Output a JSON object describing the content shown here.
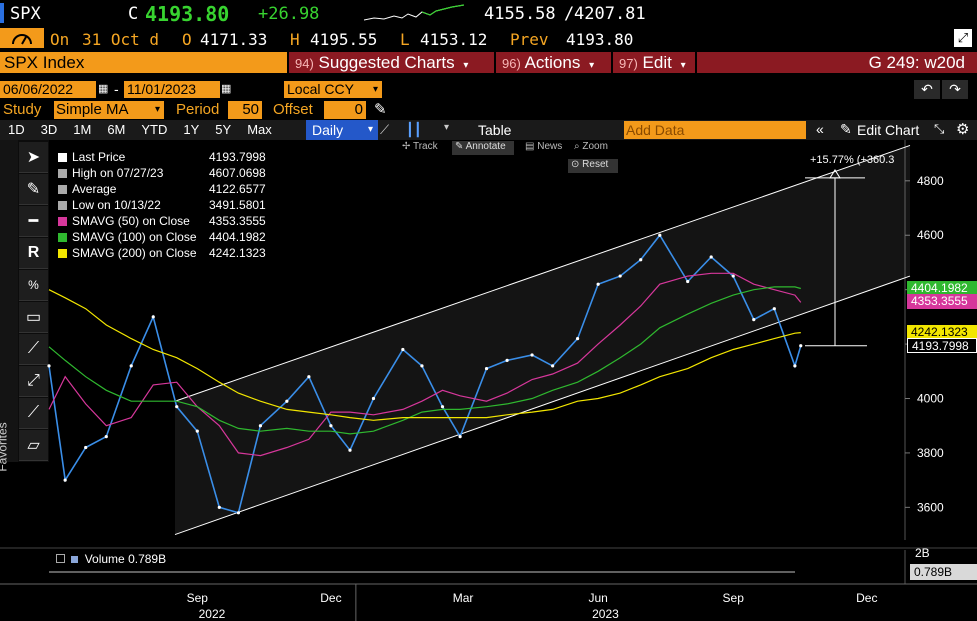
{
  "ticker": {
    "symbol": "SPX",
    "close_prefix": "C",
    "close": "4193.80",
    "change": "+26.98",
    "range_low": "4155.58",
    "range_sep": "/",
    "range_high": "4207.81"
  },
  "ohlc": {
    "on_label": "On",
    "date": "31 Oct d",
    "open_label": "O",
    "open": "4171.33",
    "high_label": "H",
    "high": "4195.55",
    "low_label": "L",
    "low": "4153.12",
    "prev_label": "Prev",
    "prev": "4193.80"
  },
  "title_bar": {
    "security": "SPX Index",
    "suggested_num": "94)",
    "suggested": "Suggested Charts",
    "actions_num": "96)",
    "actions": "Actions",
    "edit_num": "97)",
    "edit": "Edit",
    "page_code": "G 249: w20d"
  },
  "date_bar": {
    "start": "06/06/2022",
    "sep": "-",
    "end": "11/01/2023",
    "currency": "Local CCY"
  },
  "study_bar": {
    "study_label": "Study",
    "study_value": "Simple MA",
    "period_label": "Period",
    "period_value": "50",
    "offset_label": "Offset",
    "offset_value": "0"
  },
  "period_tabs": [
    "1D",
    "3D",
    "1M",
    "6M",
    "YTD",
    "1Y",
    "5Y",
    "Max"
  ],
  "toolbar": {
    "frequency": "Daily",
    "table": "Table",
    "add_data_placeholder": "Add Data",
    "edit_chart": "Edit Chart"
  },
  "chart_tools": {
    "track": "Track",
    "annotate": "Annotate",
    "news": "News",
    "zoom": "Zoom",
    "reset": "Reset"
  },
  "sidebar_label": "Favorites",
  "legend": [
    {
      "label": "Last Price",
      "value": "4193.7998",
      "color": "#ffffff"
    },
    {
      "label": "High on 07/27/23",
      "value": "4607.0698",
      "color": "#aaaaaa"
    },
    {
      "label": "Average",
      "value": "4122.6577",
      "color": "#aaaaaa"
    },
    {
      "label": "Low on 10/13/22",
      "value": "3491.5801",
      "color": "#aaaaaa"
    },
    {
      "label": "SMAVG (50)  on Close",
      "value": "4353.3555",
      "color": "#d6379b"
    },
    {
      "label": "SMAVG (100)  on Close",
      "value": "4404.1982",
      "color": "#2fb82f"
    },
    {
      "label": "SMAVG (200)  on Close",
      "value": "4242.1323",
      "color": "#f2e600"
    }
  ],
  "annotation": {
    "pct_change": "+15.77% (+360.3"
  },
  "right_tags": [
    {
      "value": "4404.1982",
      "color": "#2fb82f"
    },
    {
      "value": "4353.3555",
      "color": "#d6379b"
    },
    {
      "value": "4242.1323",
      "color": "#f2e600"
    },
    {
      "value": "4193.7998",
      "color": "#000000"
    }
  ],
  "volume": {
    "label": "Volume",
    "value": "0.789B",
    "axis_top": "2B",
    "tag": "0.789B"
  },
  "x_axis": {
    "months": [
      "Sep",
      "Dec",
      "Mar",
      "Jun",
      "Sep",
      "Dec"
    ],
    "years": [
      "2022",
      "2023"
    ]
  },
  "chart_data": {
    "type": "line",
    "title": "SPX Index",
    "ylim": [
      3480,
      4950
    ],
    "y_ticks": [
      3600,
      3800,
      4000,
      4200,
      4400,
      4600,
      4800
    ],
    "x": [
      "2022-06-06",
      "2022-06-17",
      "2022-07-01",
      "2022-07-15",
      "2022-08-01",
      "2022-08-16",
      "2022-09-01",
      "2022-09-15",
      "2022-09-30",
      "2022-10-13",
      "2022-10-28",
      "2022-11-15",
      "2022-11-30",
      "2022-12-15",
      "2022-12-28",
      "2023-01-13",
      "2023-02-02",
      "2023-02-15",
      "2023-03-01",
      "2023-03-13",
      "2023-03-31",
      "2023-04-14",
      "2023-05-01",
      "2023-05-15",
      "2023-06-01",
      "2023-06-15",
      "2023-06-30",
      "2023-07-14",
      "2023-07-27",
      "2023-08-15",
      "2023-08-31",
      "2023-09-15",
      "2023-09-29",
      "2023-10-13",
      "2023-10-27",
      "2023-10-31"
    ],
    "series": [
      {
        "name": "Last Price",
        "color": "#3a8ee8",
        "values": [
          4120,
          3700,
          3820,
          3860,
          4120,
          4300,
          3970,
          3880,
          3600,
          3580,
          3900,
          3990,
          4080,
          3900,
          3810,
          4000,
          4180,
          4120,
          3970,
          3860,
          4110,
          4140,
          4160,
          4120,
          4220,
          4420,
          4450,
          4510,
          4600,
          4430,
          4520,
          4450,
          4290,
          4330,
          4120,
          4193.8
        ]
      },
      {
        "name": "SMAVG (50)  on Close",
        "color": "#d6379b",
        "values": [
          3960,
          4080,
          3980,
          3900,
          3930,
          4050,
          4060,
          3970,
          3900,
          3800,
          3790,
          3820,
          3850,
          3950,
          3950,
          3940,
          3960,
          3990,
          4030,
          4010,
          3990,
          4020,
          4070,
          4090,
          4130,
          4200,
          4270,
          4340,
          4420,
          4450,
          4460,
          4460,
          4420,
          4400,
          4380,
          4353.36
        ]
      },
      {
        "name": "SMAVG (100)  on Close",
        "color": "#2fb82f",
        "values": [
          4190,
          4140,
          4080,
          4030,
          3990,
          3990,
          3990,
          3970,
          3920,
          3890,
          3880,
          3890,
          3880,
          3880,
          3870,
          3880,
          3920,
          3950,
          3960,
          3960,
          3970,
          3980,
          4000,
          4030,
          4060,
          4100,
          4150,
          4200,
          4260,
          4310,
          4350,
          4380,
          4400,
          4410,
          4410,
          4404.2
        ]
      },
      {
        "name": "SMAVG (200)  on Close",
        "color": "#f2e600",
        "values": [
          4400,
          4370,
          4330,
          4270,
          4220,
          4180,
          4150,
          4110,
          4060,
          4020,
          3990,
          3960,
          3950,
          3940,
          3930,
          3920,
          3930,
          3930,
          3930,
          3930,
          3930,
          3940,
          3950,
          3960,
          3990,
          4000,
          4020,
          4050,
          4080,
          4110,
          4150,
          4180,
          4200,
          4220,
          4240,
          4242.13
        ]
      }
    ],
    "annotations": {
      "high": {
        "label": "High on 07/27/23",
        "value": 4607.07
      },
      "low": {
        "label": "Low on 10/13/22",
        "value": 3491.58
      },
      "average": 4122.66
    },
    "grid": false,
    "legend_position": "top-left"
  },
  "colors": {
    "accent_orange": "#f39a1a",
    "title_red": "#8b1a22",
    "up_green": "#38d430",
    "background": "#000000"
  }
}
